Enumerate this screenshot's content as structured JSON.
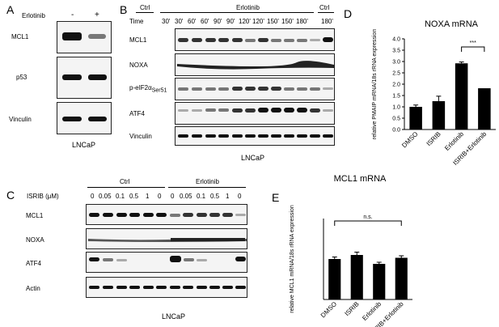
{
  "panels": {
    "A": {
      "letter": "A",
      "treatment_label": "Erlotinib",
      "treatment_minus": "-",
      "treatment_plus": "+",
      "rows": [
        "MCL1",
        "p53",
        "Vinculin"
      ],
      "cell_line": "LNCaP"
    },
    "B": {
      "letter": "B",
      "ctrl_label": "Ctrl",
      "erl_label": "Erlotinib",
      "ctrl_label_right": "Ctrl",
      "time_label": "Time",
      "timepoints": [
        "30'",
        "30'",
        "60'",
        "60'",
        "90'",
        "90'",
        "120'",
        "120'",
        "150'",
        "150'",
        "180'",
        "180'"
      ],
      "rows": [
        "MCL1",
        "NOXA",
        "p-eIF2α",
        "ATF4",
        "Vinculin"
      ],
      "peif_main": "p-eIF2α",
      "peif_sub": "Ser51",
      "cell_line": "LNCaP"
    },
    "C": {
      "letter": "C",
      "ctrl_label": "Ctrl",
      "erl_label": "Erlotinib",
      "isrib_label": "ISRIB (μM)",
      "doses": [
        "0",
        "0.05",
        "0.1",
        "0.5",
        "1",
        "0",
        "0",
        "0.05",
        "0.1",
        "0.5",
        "1",
        "0"
      ],
      "rows": [
        "MCL1",
        "NOXA",
        "ATF4",
        "Actin"
      ],
      "cell_line": "LNCaP"
    },
    "D": {
      "letter": "D"
    },
    "E": {
      "letter": "E"
    }
  },
  "chart_data": [
    {
      "type": "bar",
      "title": "NOXA mRNA",
      "ylabel": "relative PMAIP mRNA/18s rRNA expression",
      "categories": [
        "DMSO",
        "ISRIB",
        "Erlotinib",
        "ISRIB+Erlotinib"
      ],
      "values": [
        1.0,
        1.25,
        2.92,
        1.82
      ],
      "errors": [
        0.08,
        0.22,
        0.06,
        0.0
      ],
      "ylim": [
        0,
        4.0
      ],
      "yticks": [
        "0.0",
        "0.5",
        "1.0",
        "1.5",
        "2.0",
        "2.5",
        "3.0",
        "3.5",
        "4.0"
      ],
      "significance": "***"
    },
    {
      "type": "bar",
      "title": "MCL1 mRNA",
      "ylabel": "relative MCL1 mRNA/18s rRNA expression",
      "categories": [
        "DMSO",
        "ISRIB",
        "Erlotinib",
        "ISRIB+Erlotinib"
      ],
      "values": [
        1.0,
        1.1,
        0.88,
        1.03
      ],
      "errors": [
        0.05,
        0.07,
        0.04,
        0.05
      ],
      "ylim": [
        0,
        2.0
      ],
      "significance": "n.s."
    }
  ]
}
